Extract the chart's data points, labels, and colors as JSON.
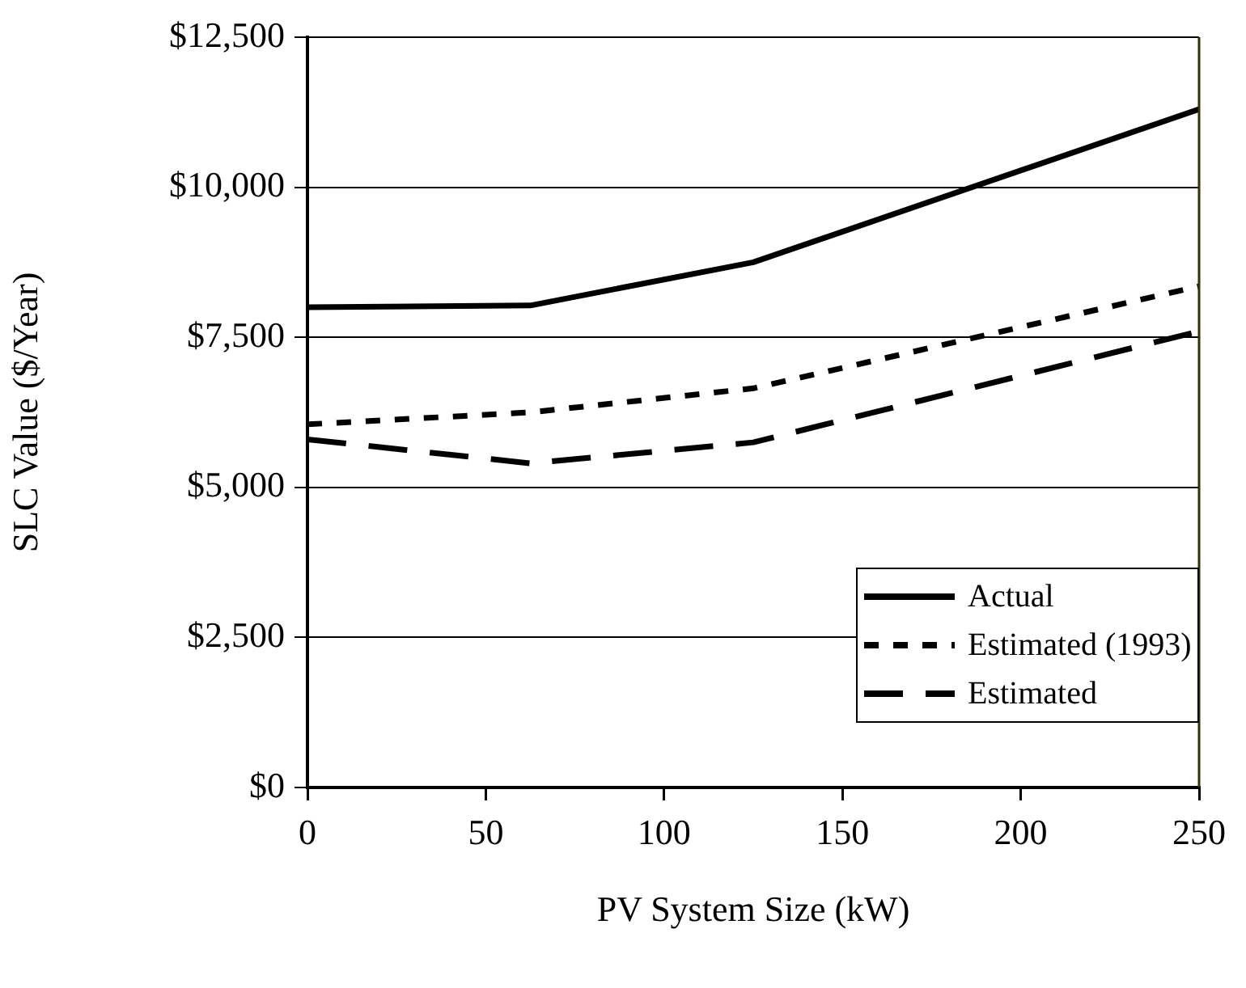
{
  "chart_data": {
    "type": "line",
    "xlabel": "PV System Size (kW)",
    "ylabel": "SLC Value ($/Year)",
    "xlim": [
      0,
      250
    ],
    "xticks": [
      0,
      50,
      100,
      150,
      200,
      250
    ],
    "ylim": [
      0,
      12500
    ],
    "yticks": [
      {
        "value": 0,
        "label": "$0"
      },
      {
        "value": 2500,
        "label": "$2,500"
      },
      {
        "value": 5000,
        "label": "$5,000"
      },
      {
        "value": 7500,
        "label": "$7,500"
      },
      {
        "value": 10000,
        "label": "$10,000"
      },
      {
        "value": 12500,
        "label": "$12,500"
      }
    ],
    "grid": "y",
    "legend": "bottom right",
    "marker": "none",
    "series": [
      {
        "name": "Actual",
        "color": "#000000",
        "line_style": "solid",
        "x": [
          0,
          62.5,
          125,
          250
        ],
        "values": [
          8000,
          8030,
          8750,
          11300
        ]
      },
      {
        "name": "Estimated (1993)",
        "color": "#000000",
        "line_style": "dotted",
        "x": [
          0,
          62.5,
          125,
          250
        ],
        "values": [
          6050,
          6250,
          6650,
          8350
        ]
      },
      {
        "name": "Estimated",
        "color": "#000000",
        "line_style": "dashed",
        "x": [
          0,
          62.5,
          125,
          250
        ],
        "values": [
          5800,
          5400,
          5750,
          7600
        ]
      }
    ]
  }
}
